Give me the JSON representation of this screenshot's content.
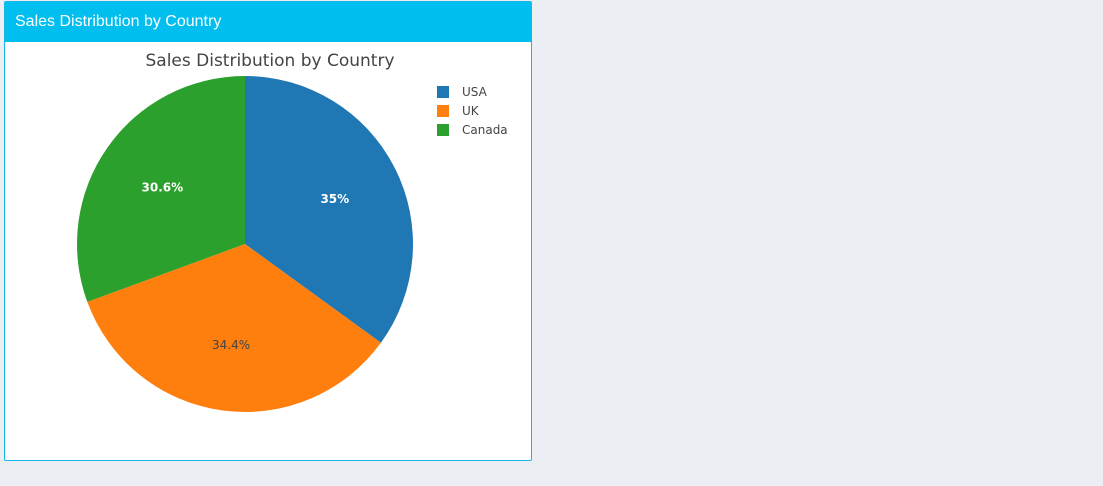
{
  "panel": {
    "title": "Sales Distribution by Country"
  },
  "chart_data": {
    "type": "pie",
    "title": "Sales Distribution by Country",
    "labels": [
      "USA",
      "UK",
      "Canada"
    ],
    "values": [
      35.0,
      34.4,
      30.6
    ],
    "text_labels": [
      "35%",
      "34.4%",
      "30.6%"
    ],
    "colors": [
      "#1f77b4",
      "#ff7f0e",
      "#2ca02c"
    ],
    "label_colors": [
      "#ffffff",
      "#444444",
      "#ffffff"
    ],
    "legend": {
      "position": "top-right",
      "entries": [
        "USA",
        "UK",
        "Canada"
      ]
    },
    "direction": "clockwise",
    "start_angle": "12 o'clock"
  }
}
